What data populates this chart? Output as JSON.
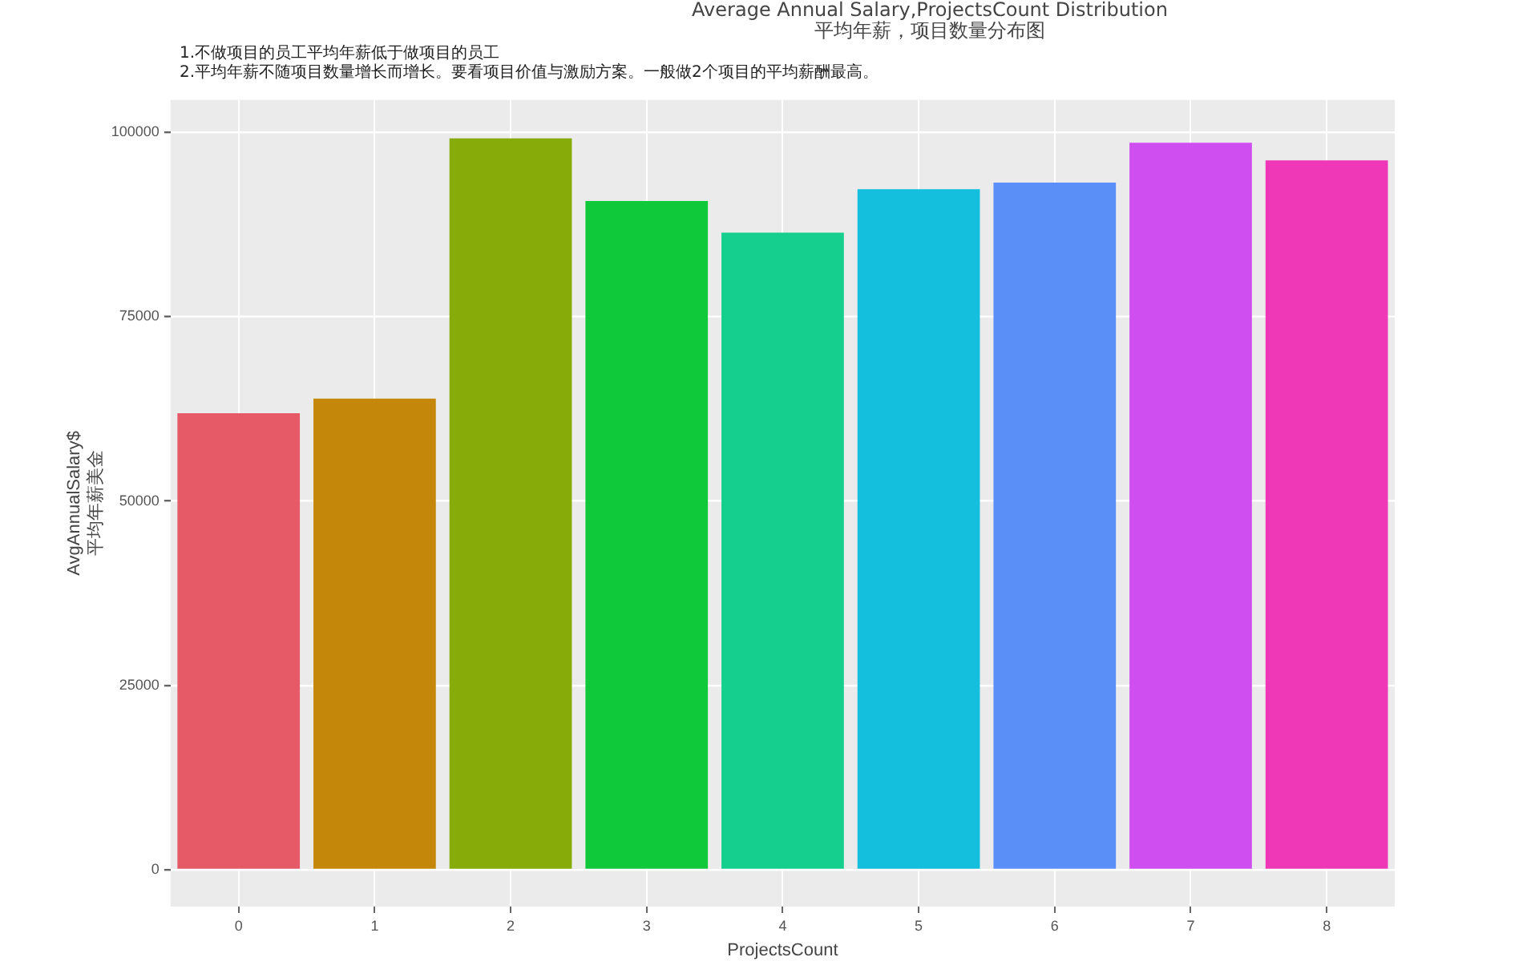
{
  "chart_data": {
    "type": "bar",
    "title": "Average Annual Salary,ProjectsCount Distribution",
    "subtitle": "平均年薪，项目数量分布图",
    "annotations": [
      "1.不做项目的员工平均年薪低于做项目的员工",
      "2.平均年薪不随项目数量增长而增长。要看项目价值与激励方案。一般做2个项目的平均薪酬最高。"
    ],
    "xlabel": "ProjectsCount",
    "ylabel": "AvgAnnualSalary$\n平均年薪美金",
    "categories": [
      "0",
      "1",
      "2",
      "3",
      "4",
      "5",
      "6",
      "7",
      "8"
    ],
    "values": [
      61900,
      63900,
      99200,
      90700,
      86400,
      92300,
      93200,
      98600,
      96200
    ],
    "colors": [
      "#e55a66",
      "#c4870a",
      "#87ab08",
      "#10c93a",
      "#14cf8e",
      "#14bfde",
      "#5b8ff8",
      "#ce4ef0",
      "#ee38b8"
    ],
    "ylim": [
      -5000,
      104400
    ],
    "yticks": [
      0,
      25000,
      50000,
      75000,
      100000
    ],
    "grid": true
  }
}
